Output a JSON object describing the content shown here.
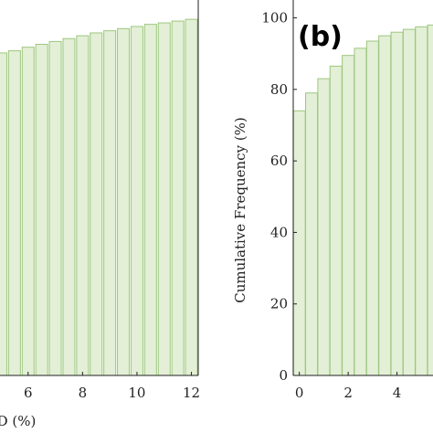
{
  "chart_data": [
    {
      "panel": "a",
      "type": "bar",
      "x": [
        5,
        5.5,
        6,
        6.5,
        7,
        7.5,
        8,
        8.5,
        9,
        9.5,
        10,
        10.5,
        11,
        11.5,
        12
      ],
      "values": [
        90.2,
        90.8,
        91.8,
        92.6,
        93.4,
        94.2,
        95.0,
        95.8,
        96.4,
        97.0,
        97.6,
        98.2,
        98.6,
        99.1,
        99.6
      ],
      "xlabel": "D (%)",
      "xticks": [
        "6",
        "8",
        "10",
        "12"
      ],
      "xlim": [
        4.8,
        12.25
      ],
      "ylim": [
        0,
        105
      ],
      "grid": false
    },
    {
      "panel": "b",
      "type": "bar",
      "panel_tag": "(b)",
      "x": [
        0,
        0.5,
        1,
        1.5,
        2,
        2.5,
        3,
        3.5,
        4,
        4.5,
        5,
        5.5
      ],
      "values": [
        74,
        79,
        83,
        86.5,
        89.5,
        91.5,
        93.5,
        95,
        96,
        96.8,
        97.5,
        98
      ],
      "ylabel": "Cumulative Frequency (%)",
      "yticks": [
        "0",
        "20",
        "40",
        "60",
        "80",
        "100"
      ],
      "xticks": [
        "0",
        "2",
        "4"
      ],
      "xlim": [
        -0.25,
        5.7
      ],
      "ylim": [
        0,
        105
      ],
      "grid": false
    }
  ],
  "colors": {
    "bar_fill": "#e3efd6",
    "bar_stroke": "#9dc77f",
    "axis": "#222222"
  }
}
